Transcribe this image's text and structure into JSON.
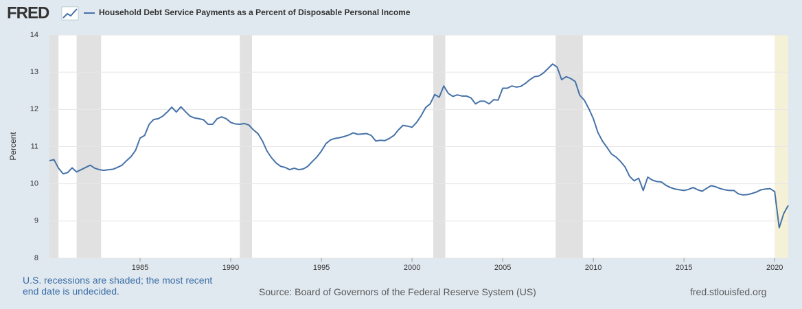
{
  "logo": "FRED",
  "chart_data": {
    "type": "line",
    "ylabel": "Percent",
    "x": [
      1980,
      1980.25,
      1980.5,
      1980.75,
      1981,
      1981.25,
      1981.5,
      1981.75,
      1982,
      1982.25,
      1982.5,
      1982.75,
      1983,
      1983.25,
      1983.5,
      1983.75,
      1984,
      1984.25,
      1984.5,
      1984.75,
      1985,
      1985.25,
      1985.5,
      1985.75,
      1986,
      1986.25,
      1986.5,
      1986.75,
      1987,
      1987.25,
      1987.5,
      1987.75,
      1988,
      1988.25,
      1988.5,
      1988.75,
      1989,
      1989.25,
      1989.5,
      1989.75,
      1990,
      1990.25,
      1990.5,
      1990.75,
      1991,
      1991.25,
      1991.5,
      1991.75,
      1992,
      1992.25,
      1992.5,
      1992.75,
      1993,
      1993.25,
      1993.5,
      1993.75,
      1994,
      1994.25,
      1994.5,
      1994.75,
      1995,
      1995.25,
      1995.5,
      1995.75,
      1996,
      1996.25,
      1996.5,
      1996.75,
      1997,
      1997.25,
      1997.5,
      1997.75,
      1998,
      1998.25,
      1998.5,
      1998.75,
      1999,
      1999.25,
      1999.5,
      1999.75,
      2000,
      2000.25,
      2000.5,
      2000.75,
      2001,
      2001.25,
      2001.5,
      2001.75,
      2002,
      2002.25,
      2002.5,
      2002.75,
      2003,
      2003.25,
      2003.5,
      2003.75,
      2004,
      2004.25,
      2004.5,
      2004.75,
      2005,
      2005.25,
      2005.5,
      2005.75,
      2006,
      2006.25,
      2006.5,
      2006.75,
      2007,
      2007.25,
      2007.5,
      2007.75,
      2008,
      2008.25,
      2008.5,
      2008.75,
      2009,
      2009.25,
      2009.5,
      2009.75,
      2010,
      2010.25,
      2010.5,
      2010.75,
      2011,
      2011.25,
      2011.5,
      2011.75,
      2012,
      2012.25,
      2012.5,
      2012.75,
      2013,
      2013.25,
      2013.5,
      2013.75,
      2014,
      2014.25,
      2014.5,
      2014.75,
      2015,
      2015.25,
      2015.5,
      2015.75,
      2016,
      2016.25,
      2016.5,
      2016.75,
      2017,
      2017.25,
      2017.5,
      2017.75,
      2018,
      2018.25,
      2018.5,
      2018.75,
      2019,
      2019.25,
      2019.5,
      2019.75,
      2020,
      2020.25,
      2020.5,
      2020.75
    ],
    "series": [
      {
        "name": "Household Debt Service Payments as a Percent of Disposable Personal Income",
        "color": "#4572a7",
        "values": [
          10.62,
          10.65,
          10.42,
          10.27,
          10.3,
          10.43,
          10.32,
          10.38,
          10.44,
          10.5,
          10.42,
          10.38,
          10.36,
          10.38,
          10.39,
          10.44,
          10.5,
          10.62,
          10.73,
          10.9,
          11.23,
          11.3,
          11.6,
          11.73,
          11.75,
          11.82,
          11.93,
          12.06,
          11.93,
          12.07,
          11.94,
          11.82,
          11.77,
          11.75,
          11.72,
          11.6,
          11.6,
          11.75,
          11.8,
          11.75,
          11.65,
          11.61,
          11.6,
          11.62,
          11.58,
          11.45,
          11.35,
          11.15,
          10.88,
          10.7,
          10.56,
          10.47,
          10.44,
          10.38,
          10.42,
          10.38,
          10.4,
          10.47,
          10.6,
          10.72,
          10.88,
          11.08,
          11.18,
          11.22,
          11.24,
          11.27,
          11.31,
          11.37,
          11.33,
          11.34,
          11.35,
          11.3,
          11.15,
          11.17,
          11.16,
          11.22,
          11.3,
          11.45,
          11.57,
          11.55,
          11.52,
          11.65,
          11.83,
          12.05,
          12.15,
          12.4,
          12.33,
          12.63,
          12.43,
          12.35,
          12.39,
          12.36,
          12.36,
          12.31,
          12.15,
          12.22,
          12.22,
          12.15,
          12.26,
          12.25,
          12.57,
          12.57,
          12.63,
          12.6,
          12.62,
          12.7,
          12.8,
          12.88,
          12.9,
          12.98,
          13.1,
          13.22,
          13.14,
          12.8,
          12.88,
          12.83,
          12.75,
          12.38,
          12.25,
          12.02,
          11.75,
          11.38,
          11.15,
          10.98,
          10.8,
          10.72,
          10.6,
          10.45,
          10.2,
          10.08,
          10.15,
          9.82,
          10.18,
          10.1,
          10.06,
          10.05,
          9.96,
          9.9,
          9.86,
          9.84,
          9.82,
          9.85,
          9.9,
          9.84,
          9.8,
          9.88,
          9.95,
          9.92,
          9.87,
          9.84,
          9.82,
          9.82,
          9.73,
          9.7,
          9.71,
          9.74,
          9.78,
          9.84,
          9.86,
          9.87,
          9.79,
          8.82,
          9.2,
          9.42
        ]
      }
    ],
    "xlim": [
      1980,
      2020.75
    ],
    "xticks": [
      1985,
      1990,
      1995,
      2000,
      2005,
      2010,
      2015,
      2020
    ],
    "ylim": [
      8,
      14
    ],
    "yticks": [
      8,
      9,
      10,
      11,
      12,
      13,
      14
    ],
    "grid": true,
    "recessions": [
      {
        "start": 1980,
        "end": 1980.5
      },
      {
        "start": 1981.5,
        "end": 1982.85
      },
      {
        "start": 1990.5,
        "end": 1991.17
      },
      {
        "start": 2001.17,
        "end": 2001.83
      },
      {
        "start": 2007.92,
        "end": 2009.42
      },
      {
        "start": 2020
      }
    ],
    "recession_color": "#e1e1e1",
    "recession_open_color": "#f5f1d9",
    "note": "U.S. recessions are shaded; the most recent end date is undecided.",
    "source": "Source: Board of Governors of the Federal Reserve System (US)",
    "site": "fred.stlouisfed.org"
  }
}
